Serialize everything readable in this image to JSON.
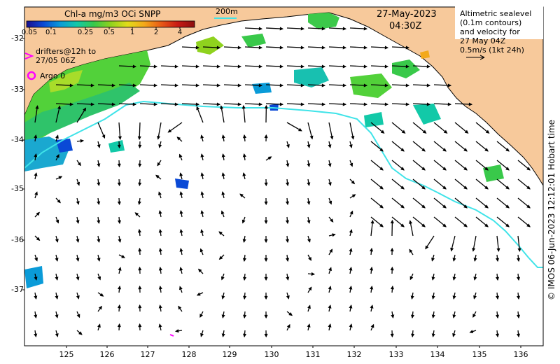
{
  "colorbar": {
    "title": "Chl-a mg/m3 OCi SNPP",
    "ticks": [
      "0.05",
      "0.1",
      "0.25",
      "0.5",
      "1",
      "2",
      "4"
    ],
    "colors": [
      "#1a0e8f",
      "#0a49d6",
      "#0a9bd8",
      "#12c9a8",
      "#39c94a",
      "#8fd21e",
      "#e1dc1a",
      "#f3a91a",
      "#e85a16",
      "#c81a14",
      "#8b0f0f"
    ]
  },
  "scale_label": "200m",
  "timestamp": {
    "date": "27-May-2023",
    "time": "04:30Z"
  },
  "legend": {
    "drifters_line1": "drifters@12h to",
    "drifters_line2": "27/05 06Z",
    "argo": "Argo 0"
  },
  "info": {
    "line1": "Altimetric sealevel",
    "line2": "(0.1m contours)",
    "line3": "and velocity for",
    "line4": "27 May 04Z",
    "line5": "0.5m/s (1kt 24h)"
  },
  "credit": "© IMOS 06-Jun-2023 12:12:01 Hobart time",
  "axes": {
    "lat_ticks": [
      "-32",
      "-33",
      "-34",
      "-35",
      "-36",
      "-37"
    ],
    "lon_ticks": [
      "125",
      "126",
      "127",
      "128",
      "129",
      "130",
      "131",
      "132",
      "133",
      "134",
      "135",
      "136"
    ]
  },
  "colors": {
    "land": "#f7c99b",
    "ocean": "#ffffff",
    "contour_200m": "#3fe3e8",
    "drifter": "#ff00ff",
    "argo": "#ff00ff"
  },
  "icons": [
    "drifter-arrow-icon",
    "argo-circle-icon",
    "velocity-arrow-icon"
  ]
}
